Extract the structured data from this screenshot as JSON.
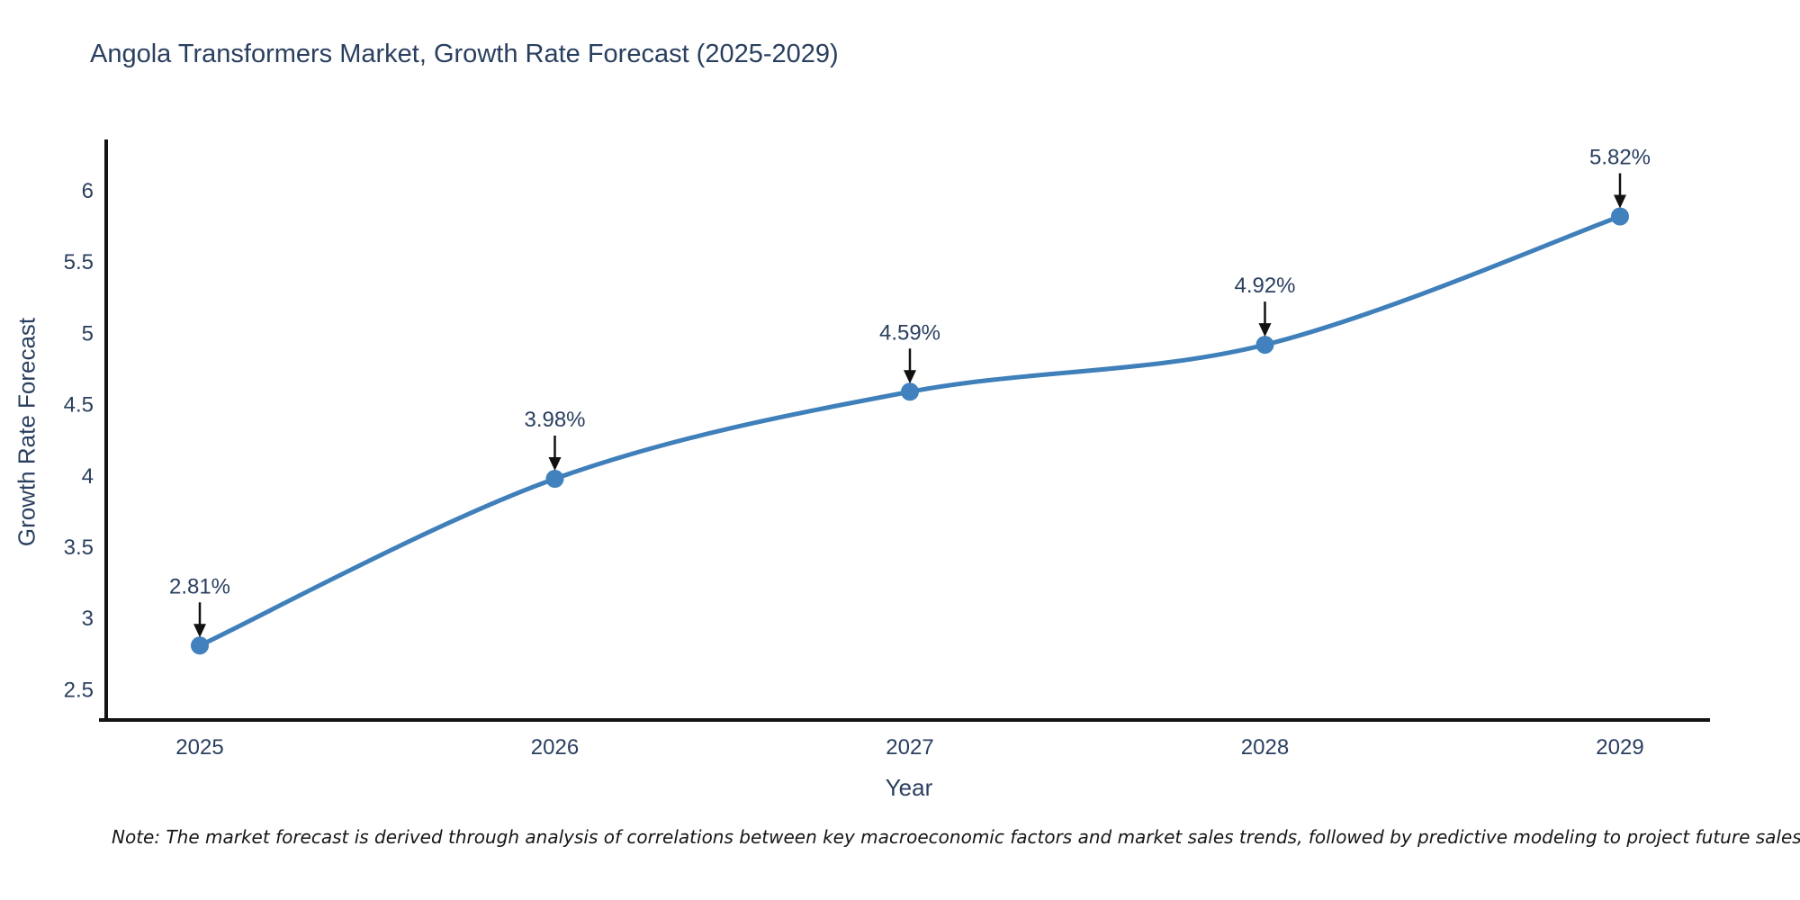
{
  "title": "Angola Transformers Market, Growth Rate Forecast (2025-2029)",
  "note": "Note: The market forecast is derived through analysis of correlations between key macroeconomic factors and market sales trends, followed by predictive modeling to project future sales",
  "chart_data": {
    "type": "line",
    "title": "Angola Transformers Market, Growth Rate Forecast (2025-2029)",
    "xlabel": "Year",
    "ylabel": "Growth Rate Forecast",
    "categories": [
      "2025",
      "2026",
      "2027",
      "2028",
      "2029"
    ],
    "series": [
      {
        "name": "Growth Rate Forecast",
        "values": [
          2.81,
          3.98,
          4.59,
          4.92,
          5.82
        ],
        "point_labels": [
          "2.81%",
          "3.98%",
          "4.59%",
          "4.92%",
          "5.82%"
        ]
      }
    ],
    "ytick_labels": [
      "2.5",
      "3",
      "3.5",
      "4",
      "4.5",
      "5",
      "5.5",
      "6"
    ],
    "ylim": [
      2.28,
      6.35
    ],
    "grid": false,
    "legend_position": "none",
    "line_shape": "spline",
    "line_color": "#3f7fba",
    "marker_color": "#4181bd",
    "axis_color": "#131313",
    "text_color": "#2a3f5f",
    "annotation_arrow_color": "#111111"
  }
}
